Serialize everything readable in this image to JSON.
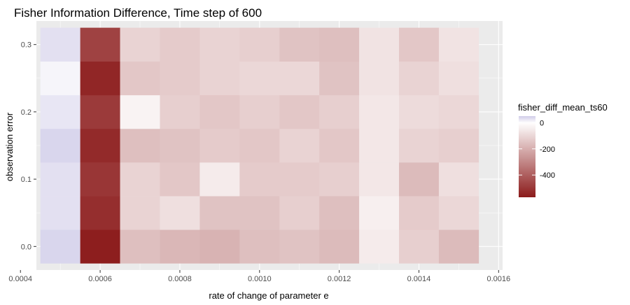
{
  "chart_data": {
    "type": "heatmap",
    "title": "Fisher Information Difference, Time step of 600",
    "xlabel": "rate of change of parameter e",
    "ylabel": "observation error",
    "x": [
      0.0005,
      0.0006,
      0.0007,
      0.0008,
      0.0009,
      0.001,
      0.0011,
      0.0012,
      0.0013,
      0.0014,
      0.0015
    ],
    "y": [
      0.0,
      0.05,
      0.1,
      0.15,
      0.2,
      0.25,
      0.3
    ],
    "values": [
      [
        40,
        -560,
        -160,
        -180,
        -190,
        -160,
        -150,
        -170,
        -50,
        -120,
        -170
      ],
      [
        30,
        -520,
        -110,
        -80,
        -150,
        -150,
        -120,
        -160,
        -40,
        -130,
        -100
      ],
      [
        30,
        -500,
        -110,
        -140,
        -50,
        -130,
        -130,
        -120,
        -60,
        -170,
        -80
      ],
      [
        40,
        -530,
        -160,
        -150,
        -130,
        -140,
        -110,
        -140,
        -60,
        -110,
        -120
      ],
      [
        25,
        -490,
        -30,
        -120,
        -140,
        -120,
        -140,
        -120,
        -60,
        -90,
        -100
      ],
      [
        10,
        -540,
        -140,
        -130,
        -110,
        -100,
        -100,
        -150,
        -70,
        -110,
        -80
      ],
      [
        30,
        -470,
        -110,
        -130,
        -110,
        -120,
        -150,
        -160,
        -70,
        -140,
        -70
      ]
    ],
    "xlim": [
      0.00044,
      0.00161
    ],
    "ylim": [
      -0.035,
      0.335
    ],
    "x_ticks": [
      0.0004,
      0.0006,
      0.0008,
      0.001,
      0.0012,
      0.0014,
      0.0016
    ],
    "x_tick_labels": [
      "0.0004",
      "0.0006",
      "0.0008",
      "0.0010",
      "0.0012",
      "0.0014",
      "0.0016"
    ],
    "y_ticks": [
      0.0,
      0.1,
      0.2,
      0.3
    ],
    "y_tick_labels": [
      "0.0",
      "0.1",
      "0.2",
      "0.3"
    ],
    "grid": true,
    "legend": {
      "title": "fisher_diff_mean_ts60",
      "position": "right",
      "min": -570,
      "max": 50,
      "ticks": [
        0,
        -200,
        -400
      ],
      "tick_labels": [
        "0",
        "-200",
        "-400"
      ]
    },
    "colors": {
      "low": "#8b1a1a",
      "mid": "#ffffff",
      "high": "#d0cce8",
      "panel_background": "#ebebeb",
      "grid": "#ffffff"
    }
  }
}
